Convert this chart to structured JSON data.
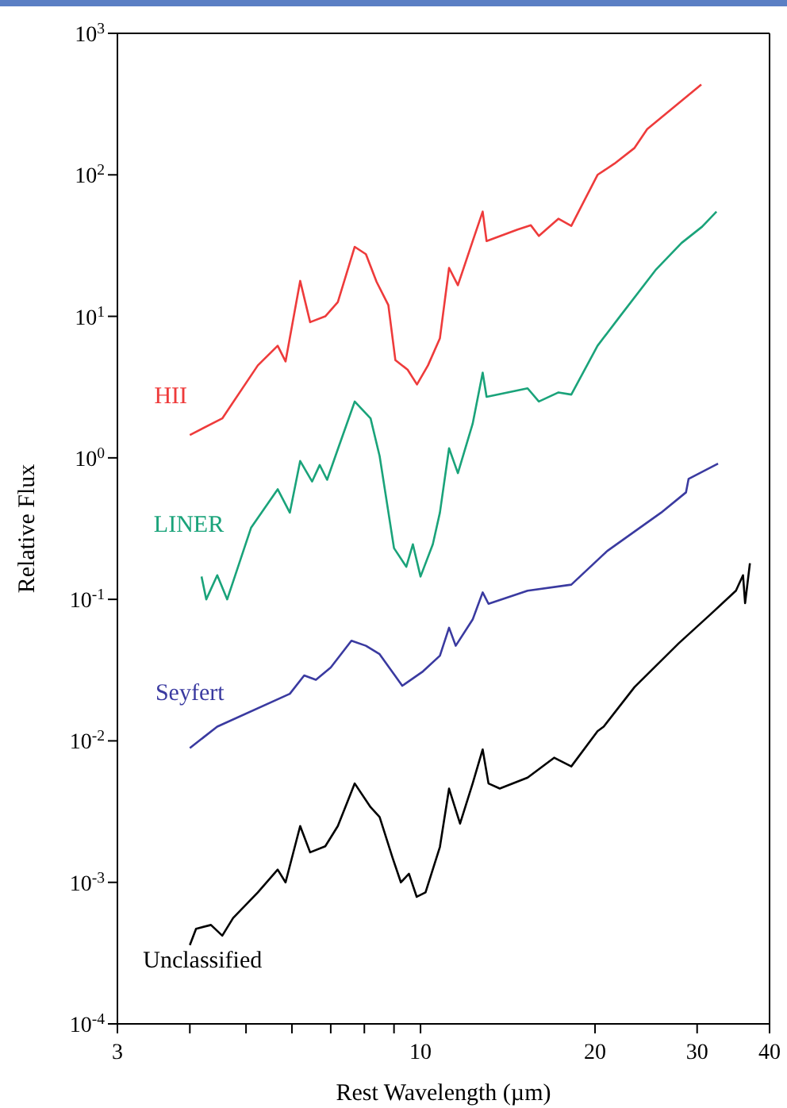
{
  "chart_data": {
    "type": "line",
    "xlabel": "Rest Wavelength (µm)",
    "ylabel": "Relative Flux",
    "log": "xy",
    "grid": false,
    "legend": false,
    "marker": "none",
    "line_style": "solid",
    "xlim": [
      3,
      40
    ],
    "xticks": [
      3,
      {
        "value": 4,
        "label": null
      },
      {
        "value": 5,
        "label": null
      },
      {
        "value": 6,
        "label": null
      },
      {
        "value": 7,
        "label": null
      },
      {
        "value": 8,
        "label": null
      },
      {
        "value": 9,
        "label": null
      },
      10,
      20,
      30,
      40
    ],
    "ylim": [
      0.0001,
      1000
    ],
    "yticks": [
      {
        "value": 0.0001,
        "label": "10$^{-4}$"
      },
      {
        "value": 0.001,
        "label": "10$^{-3}$"
      },
      {
        "value": 0.01,
        "label": "10$^{-2}$"
      },
      {
        "value": 0.1,
        "label": "10$^{-1}$"
      },
      {
        "value": 1,
        "label": "10$^{0}$"
      },
      {
        "value": 10,
        "label": "10$^{1}$"
      },
      {
        "value": 100,
        "label": "10$^{2}$"
      },
      {
        "value": 1000,
        "label": "10$^{3}$"
      }
    ],
    "series": [
      {
        "name": "HII",
        "color": "#ee3b3b",
        "x": [
          4.0,
          4.55,
          5.24,
          5.67,
          5.85,
          6.2,
          6.45,
          6.85,
          7.2,
          7.7,
          8.05,
          8.4,
          8.8,
          9.05,
          9.5,
          9.86,
          10.3,
          10.8,
          11.2,
          11.6,
          12.3,
          12.8,
          13.0,
          14.7,
          15.5,
          16.0,
          17.3,
          18.2,
          20.2,
          21.6,
          23.4,
          24.6,
          30.5
        ],
        "values": [
          1.45,
          1.9,
          4.5,
          6.2,
          4.8,
          17.8,
          9.1,
          10,
          12.6,
          31,
          27.5,
          17.5,
          12,
          4.9,
          4.2,
          3.3,
          4.5,
          7,
          22,
          16.6,
          34,
          55,
          34,
          41,
          44,
          37,
          49,
          43.6,
          100,
          120,
          155,
          210,
          435
        ]
      },
      {
        "name": "LINER",
        "color": "#1aa37a",
        "x": [
          4.19,
          4.27,
          4.46,
          4.64,
          5.1,
          5.67,
          5.95,
          6.2,
          6.5,
          6.7,
          6.9,
          7.2,
          7.7,
          8.2,
          8.5,
          9.0,
          9.45,
          9.7,
          10.0,
          10.5,
          10.8,
          11.2,
          11.6,
          12.3,
          12.8,
          13.0,
          15.3,
          16.0,
          17.3,
          18.2,
          20.2,
          22.0,
          25.5,
          28.2,
          30.6,
          32.4
        ],
        "values": [
          0.145,
          0.1,
          0.148,
          0.1,
          0.32,
          0.6,
          0.41,
          0.95,
          0.68,
          0.89,
          0.7,
          1.15,
          2.5,
          1.9,
          1.03,
          0.23,
          0.17,
          0.245,
          0.145,
          0.245,
          0.41,
          1.17,
          0.78,
          1.74,
          4.0,
          2.7,
          3.1,
          2.5,
          2.9,
          2.8,
          6.2,
          9.8,
          21.5,
          33,
          43,
          55
        ]
      },
      {
        "name": "Seyfert",
        "color": "#3a3aa0",
        "x": [
          4.0,
          4.46,
          5.95,
          6.3,
          6.6,
          7.0,
          7.6,
          8.05,
          8.5,
          9.3,
          9.5,
          10.1,
          10.8,
          11.2,
          11.5,
          12.3,
          12.8,
          13.1,
          15.3,
          18.2,
          21.0,
          26.0,
          28.7,
          29.0,
          32.6
        ],
        "values": [
          0.0089,
          0.0126,
          0.0215,
          0.029,
          0.027,
          0.033,
          0.051,
          0.047,
          0.041,
          0.0245,
          0.026,
          0.031,
          0.04,
          0.063,
          0.047,
          0.072,
          0.112,
          0.093,
          0.115,
          0.127,
          0.22,
          0.41,
          0.57,
          0.71,
          0.91
        ]
      },
      {
        "name": "Unclassified",
        "color": "#000000",
        "x": [
          4.0,
          4.1,
          4.35,
          4.55,
          4.75,
          5.24,
          5.67,
          5.85,
          6.2,
          6.45,
          6.85,
          7.2,
          7.7,
          8.2,
          8.5,
          8.95,
          9.25,
          9.55,
          9.85,
          10.2,
          10.8,
          11.2,
          11.7,
          12.3,
          12.8,
          13.1,
          13.7,
          15.3,
          17.0,
          18.2,
          20.2,
          20.7,
          23.4,
          27.9,
          31.6,
          35.0,
          36.0,
          36.3,
          37.0
        ],
        "values": [
          0.00036,
          0.00047,
          0.0005,
          0.00042,
          0.00056,
          0.00085,
          0.00123,
          0.001,
          0.0025,
          0.00163,
          0.0018,
          0.0025,
          0.005,
          0.0034,
          0.0029,
          0.00149,
          0.001,
          0.00115,
          0.00079,
          0.00085,
          0.00178,
          0.0046,
          0.0026,
          0.005,
          0.0087,
          0.005,
          0.0046,
          0.0055,
          0.0076,
          0.0066,
          0.0117,
          0.0126,
          0.024,
          0.049,
          0.078,
          0.115,
          0.148,
          0.094,
          0.18
        ]
      }
    ]
  }
}
